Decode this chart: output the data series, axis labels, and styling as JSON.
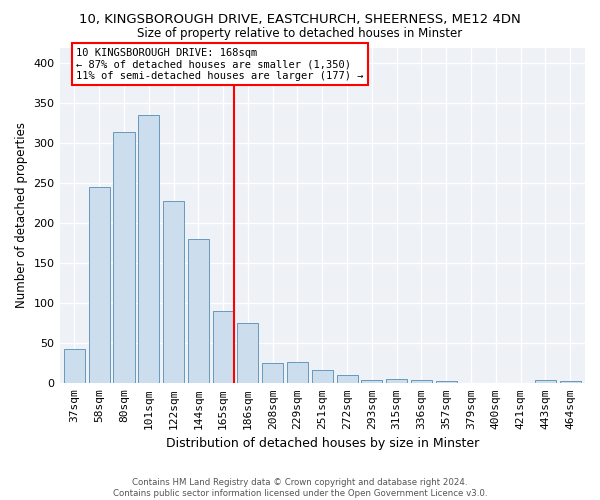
{
  "title1": "10, KINGSBOROUGH DRIVE, EASTCHURCH, SHEERNESS, ME12 4DN",
  "title2": "Size of property relative to detached houses in Minster",
  "xlabel": "Distribution of detached houses by size in Minster",
  "ylabel": "Number of detached properties",
  "categories": [
    "37sqm",
    "58sqm",
    "80sqm",
    "101sqm",
    "122sqm",
    "144sqm",
    "165sqm",
    "186sqm",
    "208sqm",
    "229sqm",
    "251sqm",
    "272sqm",
    "293sqm",
    "315sqm",
    "336sqm",
    "357sqm",
    "379sqm",
    "400sqm",
    "421sqm",
    "443sqm",
    "464sqm"
  ],
  "values": [
    43,
    246,
    314,
    335,
    228,
    181,
    90,
    75,
    26,
    27,
    17,
    10,
    4,
    6,
    4,
    3,
    0,
    0,
    0,
    4,
    3
  ],
  "bar_color": "#ccdded",
  "bar_edge_color": "#6699bb",
  "vline_x_index": 6,
  "vline_color": "red",
  "annotation_text": "10 KINGSBOROUGH DRIVE: 168sqm\n← 87% of detached houses are smaller (1,350)\n11% of semi-detached houses are larger (177) →",
  "annotation_box_color": "white",
  "annotation_box_edge_color": "red",
  "footnote1": "Contains HM Land Registry data © Crown copyright and database right 2024.",
  "footnote2": "Contains public sector information licensed under the Open Government Licence v3.0.",
  "ylim": [
    0,
    420
  ],
  "yticks": [
    0,
    50,
    100,
    150,
    200,
    250,
    300,
    350,
    400
  ],
  "background_color": "#eef2f7"
}
